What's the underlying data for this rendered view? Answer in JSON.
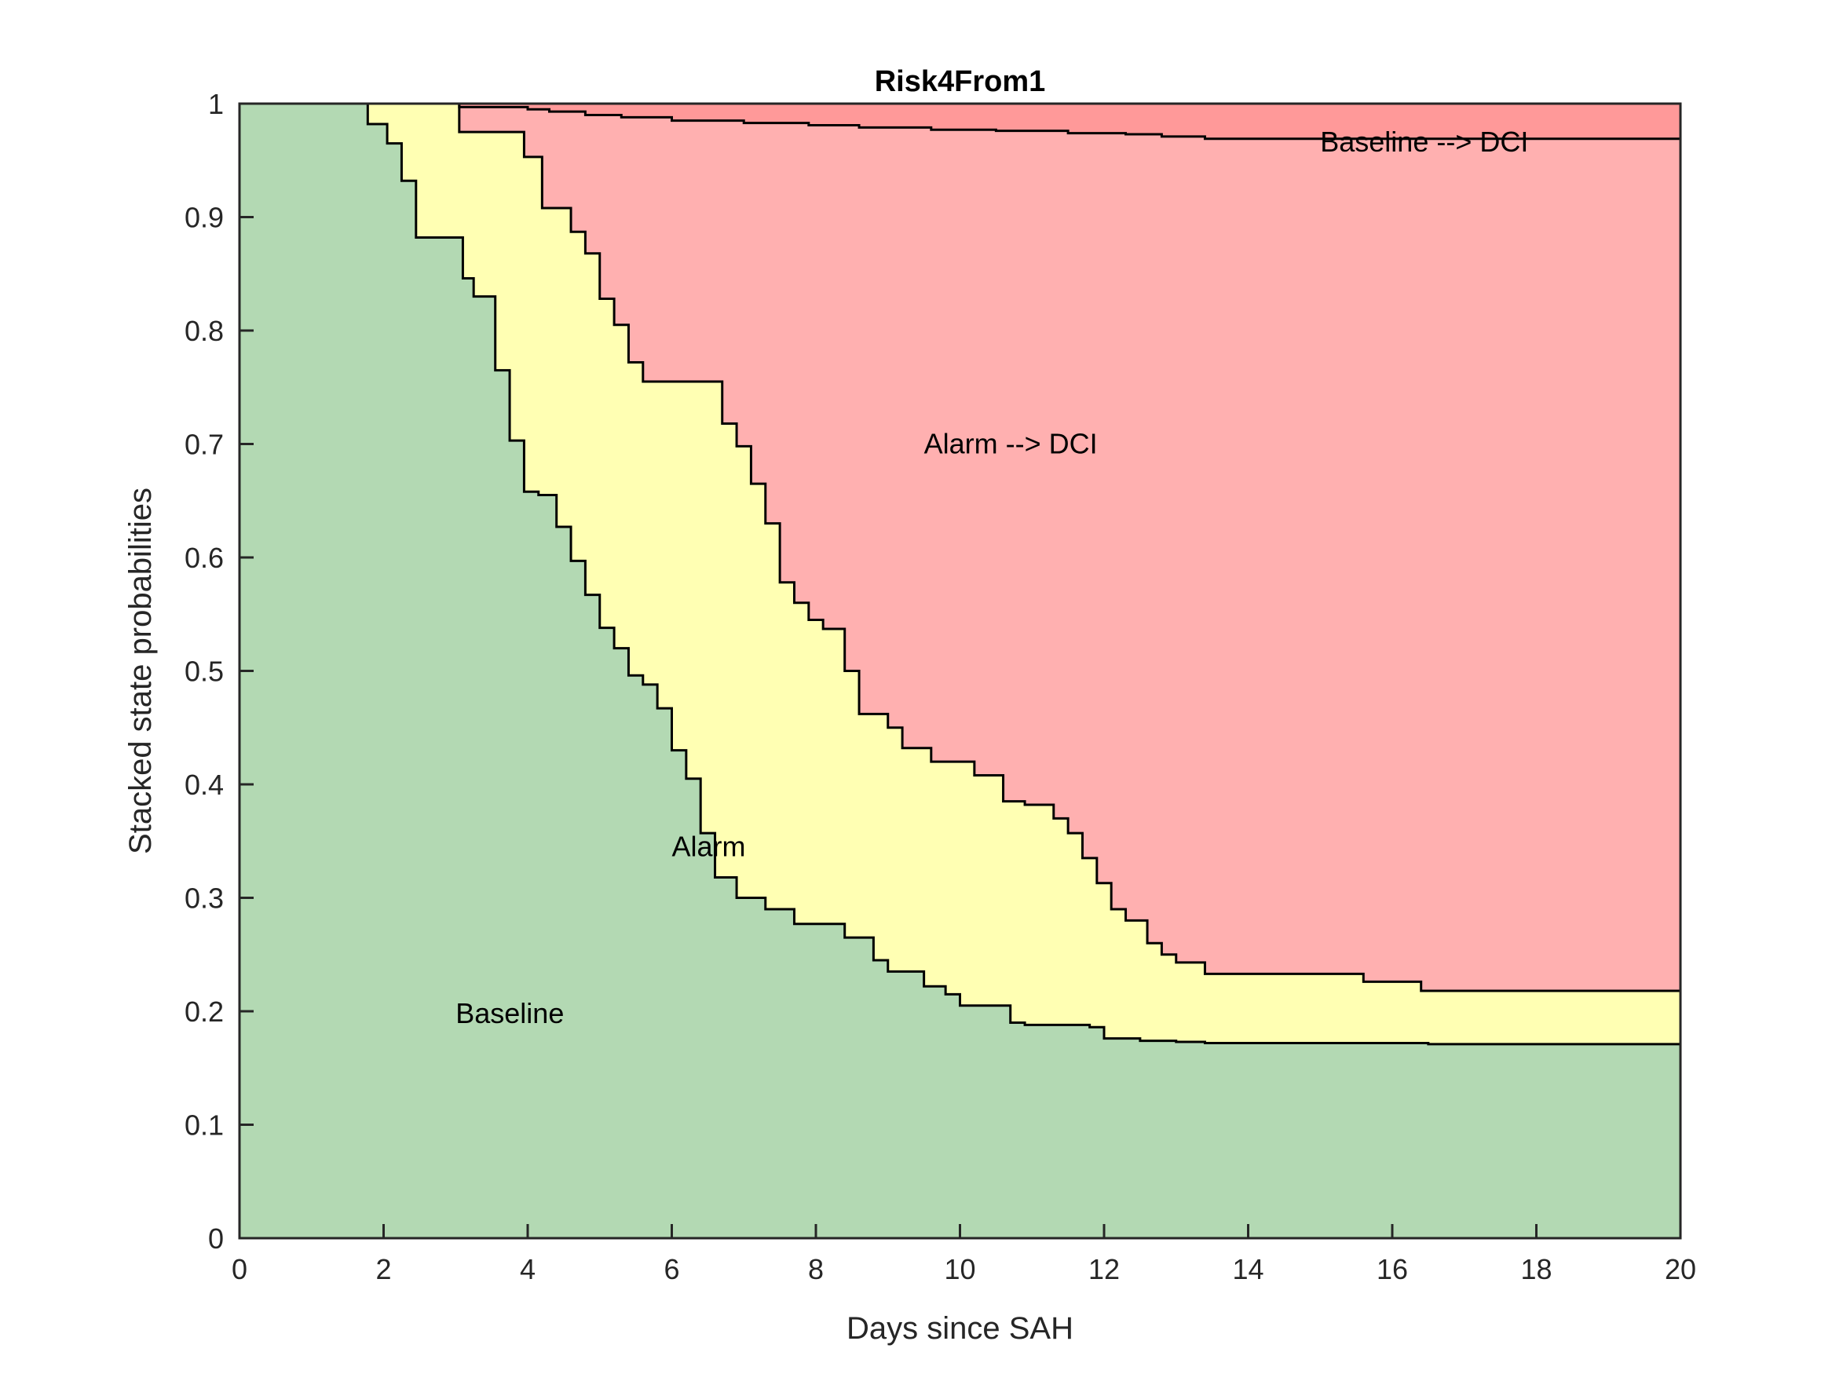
{
  "chart_data": {
    "type": "area",
    "title": "Risk4From1",
    "xlabel": "Days since SAH",
    "ylabel": "Stacked state probabilities",
    "xlim": [
      0,
      20
    ],
    "ylim": [
      0,
      1
    ],
    "xticks": [
      0,
      2,
      4,
      6,
      8,
      10,
      12,
      14,
      16,
      18,
      20
    ],
    "yticks": [
      0,
      0.1,
      0.2,
      0.3,
      0.4,
      0.5,
      0.6,
      0.7,
      0.8,
      0.9,
      1
    ],
    "xtick_labels": [
      "0",
      "2",
      "4",
      "6",
      "8",
      "10",
      "12",
      "14",
      "16",
      "18",
      "20"
    ],
    "ytick_labels": [
      "0",
      "0.1",
      "0.2",
      "0.3",
      "0.4",
      "0.5",
      "0.6",
      "0.7",
      "0.8",
      "0.9",
      "1"
    ],
    "grid": false,
    "step": true,
    "series": [
      {
        "name": "Baseline",
        "color": "#b3d9b3",
        "label_at": [
          3.0,
          0.198
        ],
        "points": [
          [
            0,
            1
          ],
          [
            1.78,
            1
          ],
          [
            1.78,
            0.982
          ],
          [
            2.05,
            0.982
          ],
          [
            2.05,
            0.965
          ],
          [
            2.25,
            0.965
          ],
          [
            2.25,
            0.932
          ],
          [
            2.45,
            0.932
          ],
          [
            2.45,
            0.882
          ],
          [
            3.1,
            0.882
          ],
          [
            3.1,
            0.846
          ],
          [
            3.25,
            0.846
          ],
          [
            3.25,
            0.83
          ],
          [
            3.55,
            0.83
          ],
          [
            3.55,
            0.765
          ],
          [
            3.75,
            0.765
          ],
          [
            3.75,
            0.703
          ],
          [
            3.95,
            0.703
          ],
          [
            3.95,
            0.658
          ],
          [
            4.15,
            0.658
          ],
          [
            4.15,
            0.655
          ],
          [
            4.4,
            0.655
          ],
          [
            4.4,
            0.627
          ],
          [
            4.6,
            0.627
          ],
          [
            4.6,
            0.597
          ],
          [
            4.8,
            0.597
          ],
          [
            4.8,
            0.567
          ],
          [
            5.0,
            0.567
          ],
          [
            5.0,
            0.538
          ],
          [
            5.2,
            0.538
          ],
          [
            5.2,
            0.52
          ],
          [
            5.4,
            0.52
          ],
          [
            5.4,
            0.496
          ],
          [
            5.6,
            0.496
          ],
          [
            5.6,
            0.488
          ],
          [
            5.8,
            0.488
          ],
          [
            5.8,
            0.467
          ],
          [
            6.0,
            0.467
          ],
          [
            6.0,
            0.43
          ],
          [
            6.2,
            0.43
          ],
          [
            6.2,
            0.405
          ],
          [
            6.4,
            0.405
          ],
          [
            6.4,
            0.357
          ],
          [
            6.6,
            0.357
          ],
          [
            6.6,
            0.318
          ],
          [
            6.9,
            0.318
          ],
          [
            6.9,
            0.3
          ],
          [
            7.3,
            0.3
          ],
          [
            7.3,
            0.29
          ],
          [
            7.7,
            0.29
          ],
          [
            7.7,
            0.277
          ],
          [
            8.4,
            0.277
          ],
          [
            8.4,
            0.265
          ],
          [
            8.8,
            0.265
          ],
          [
            8.8,
            0.245
          ],
          [
            9.0,
            0.245
          ],
          [
            9.0,
            0.235
          ],
          [
            9.5,
            0.235
          ],
          [
            9.5,
            0.222
          ],
          [
            9.8,
            0.222
          ],
          [
            9.8,
            0.215
          ],
          [
            10.0,
            0.215
          ],
          [
            10.0,
            0.205
          ],
          [
            10.7,
            0.205
          ],
          [
            10.7,
            0.19
          ],
          [
            10.9,
            0.19
          ],
          [
            10.9,
            0.188
          ],
          [
            11.8,
            0.188
          ],
          [
            11.8,
            0.186
          ],
          [
            12.0,
            0.186
          ],
          [
            12.0,
            0.176
          ],
          [
            12.5,
            0.176
          ],
          [
            12.5,
            0.174
          ],
          [
            13.0,
            0.174
          ],
          [
            13.0,
            0.173
          ],
          [
            13.4,
            0.173
          ],
          [
            13.4,
            0.172
          ],
          [
            16.5,
            0.172
          ],
          [
            16.5,
            0.171
          ],
          [
            20,
            0.171
          ]
        ]
      },
      {
        "name": "Alarm",
        "color": "#ffffb3",
        "label_at": [
          6.0,
          0.345
        ],
        "points": [
          [
            0,
            1
          ],
          [
            3.05,
            1
          ],
          [
            3.05,
            0.975
          ],
          [
            3.95,
            0.975
          ],
          [
            3.95,
            0.953
          ],
          [
            4.2,
            0.953
          ],
          [
            4.2,
            0.908
          ],
          [
            4.6,
            0.908
          ],
          [
            4.6,
            0.887
          ],
          [
            4.8,
            0.887
          ],
          [
            4.8,
            0.868
          ],
          [
            5.0,
            0.868
          ],
          [
            5.0,
            0.828
          ],
          [
            5.2,
            0.828
          ],
          [
            5.2,
            0.805
          ],
          [
            5.4,
            0.805
          ],
          [
            5.4,
            0.772
          ],
          [
            5.6,
            0.772
          ],
          [
            5.6,
            0.755
          ],
          [
            6.7,
            0.755
          ],
          [
            6.7,
            0.718
          ],
          [
            6.9,
            0.718
          ],
          [
            6.9,
            0.698
          ],
          [
            7.1,
            0.698
          ],
          [
            7.1,
            0.665
          ],
          [
            7.3,
            0.665
          ],
          [
            7.3,
            0.63
          ],
          [
            7.5,
            0.63
          ],
          [
            7.5,
            0.578
          ],
          [
            7.7,
            0.578
          ],
          [
            7.7,
            0.56
          ],
          [
            7.9,
            0.56
          ],
          [
            7.9,
            0.545
          ],
          [
            8.1,
            0.545
          ],
          [
            8.1,
            0.537
          ],
          [
            8.4,
            0.537
          ],
          [
            8.4,
            0.5
          ],
          [
            8.6,
            0.5
          ],
          [
            8.6,
            0.462
          ],
          [
            9.0,
            0.462
          ],
          [
            9.0,
            0.45
          ],
          [
            9.2,
            0.45
          ],
          [
            9.2,
            0.432
          ],
          [
            9.6,
            0.432
          ],
          [
            9.6,
            0.42
          ],
          [
            10.2,
            0.42
          ],
          [
            10.2,
            0.408
          ],
          [
            10.6,
            0.408
          ],
          [
            10.6,
            0.385
          ],
          [
            10.9,
            0.385
          ],
          [
            10.9,
            0.382
          ],
          [
            11.3,
            0.382
          ],
          [
            11.3,
            0.37
          ],
          [
            11.5,
            0.37
          ],
          [
            11.5,
            0.357
          ],
          [
            11.7,
            0.357
          ],
          [
            11.7,
            0.335
          ],
          [
            11.9,
            0.335
          ],
          [
            11.9,
            0.313
          ],
          [
            12.1,
            0.313
          ],
          [
            12.1,
            0.29
          ],
          [
            12.3,
            0.29
          ],
          [
            12.3,
            0.28
          ],
          [
            12.6,
            0.28
          ],
          [
            12.6,
            0.26
          ],
          [
            12.8,
            0.26
          ],
          [
            12.8,
            0.25
          ],
          [
            13.0,
            0.25
          ],
          [
            13.0,
            0.243
          ],
          [
            13.4,
            0.243
          ],
          [
            13.4,
            0.233
          ],
          [
            15.6,
            0.233
          ],
          [
            15.6,
            0.226
          ],
          [
            16.4,
            0.226
          ],
          [
            16.4,
            0.218
          ],
          [
            20,
            0.218
          ]
        ]
      },
      {
        "name": "Alarm --> DCI",
        "color": "#ffb0b0",
        "label_at": [
          9.5,
          0.7
        ],
        "points": [
          [
            0,
            1
          ],
          [
            3.05,
            1
          ],
          [
            3.05,
            0.997
          ],
          [
            4.0,
            0.997
          ],
          [
            4.0,
            0.995
          ],
          [
            4.3,
            0.995
          ],
          [
            4.3,
            0.993
          ],
          [
            4.8,
            0.993
          ],
          [
            4.8,
            0.99
          ],
          [
            5.3,
            0.99
          ],
          [
            5.3,
            0.988
          ],
          [
            6.0,
            0.988
          ],
          [
            6.0,
            0.985
          ],
          [
            7.0,
            0.985
          ],
          [
            7.0,
            0.983
          ],
          [
            7.9,
            0.983
          ],
          [
            7.9,
            0.981
          ],
          [
            8.6,
            0.981
          ],
          [
            8.6,
            0.979
          ],
          [
            9.6,
            0.979
          ],
          [
            9.6,
            0.977
          ],
          [
            10.5,
            0.977
          ],
          [
            10.5,
            0.976
          ],
          [
            11.5,
            0.976
          ],
          [
            11.5,
            0.974
          ],
          [
            12.3,
            0.974
          ],
          [
            12.3,
            0.973
          ],
          [
            12.8,
            0.973
          ],
          [
            12.8,
            0.971
          ],
          [
            13.4,
            0.971
          ],
          [
            13.4,
            0.969
          ],
          [
            20,
            0.969
          ]
        ]
      },
      {
        "name": "Baseline --> DCI",
        "color": "#ff9999",
        "label_at": [
          15.0,
          0.966
        ],
        "points": [
          [
            0,
            1
          ],
          [
            20,
            1
          ]
        ]
      }
    ]
  }
}
